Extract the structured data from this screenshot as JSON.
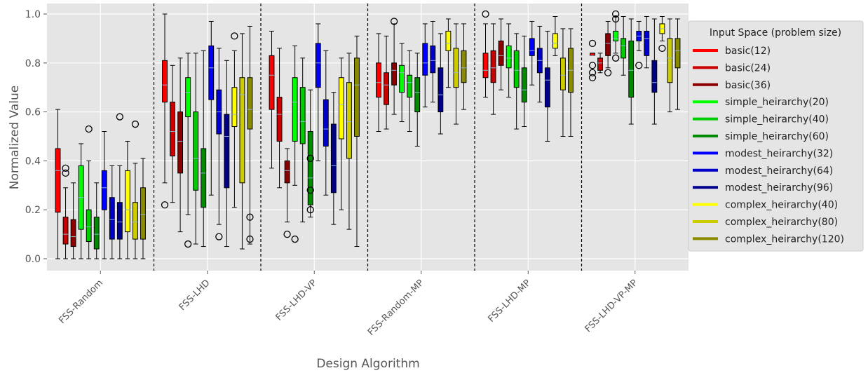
{
  "chart_data": {
    "type": "boxplot",
    "xlabel": "Design Algorithm",
    "ylabel": "Normalized Value",
    "ylim": [
      -0.05,
      1.05
    ],
    "yticks": [
      "0.0",
      "0.2",
      "0.4",
      "0.6",
      "0.8",
      "1.0"
    ],
    "grid": true,
    "legend_position": "right",
    "legend_title": "Input Space (problem size)",
    "categories": [
      "FSS-Random",
      "FSS-LHD",
      "FSS-LHD-VP",
      "FSS-Random-MP",
      "FSS-LHD-MP",
      "FSS-LHD-VP-MP"
    ],
    "series": [
      {
        "name": "basic(12)",
        "color": "#ff0000"
      },
      {
        "name": "basic(24)",
        "color": "#cc0000"
      },
      {
        "name": "basic(36)",
        "color": "#8b0000"
      },
      {
        "name": "simple_heirarchy(20)",
        "color": "#00ff00"
      },
      {
        "name": "simple_heirarchy(40)",
        "color": "#00cc00"
      },
      {
        "name": "simple_heirarchy(60)",
        "color": "#008b00"
      },
      {
        "name": "modest_heirarchy(32)",
        "color": "#0000ff"
      },
      {
        "name": "modest_heirarchy(64)",
        "color": "#0000cc"
      },
      {
        "name": "modest_heirarchy(96)",
        "color": "#00008b"
      },
      {
        "name": "complex_heirarchy(40)",
        "color": "#ffff00"
      },
      {
        "name": "complex_heirarchy(80)",
        "color": "#cccc00"
      },
      {
        "name": "complex_heirarchy(120)",
        "color": "#8b8b00"
      }
    ],
    "boxes": [
      [
        [
          0.0,
          0.19,
          0.36,
          0.45,
          0.61,
          []
        ],
        [
          0.0,
          0.06,
          0.1,
          0.17,
          0.29,
          [
            0.35,
            0.37
          ]
        ],
        [
          0.0,
          0.05,
          0.09,
          0.16,
          0.31,
          []
        ],
        [
          0.0,
          0.12,
          0.25,
          0.38,
          0.47,
          []
        ],
        [
          0.0,
          0.07,
          0.13,
          0.2,
          0.4,
          [
            0.53
          ]
        ],
        [
          0.0,
          0.04,
          0.1,
          0.17,
          0.31,
          []
        ],
        [
          0.0,
          0.2,
          0.29,
          0.36,
          0.52,
          []
        ],
        [
          0.0,
          0.08,
          0.16,
          0.25,
          0.38,
          []
        ],
        [
          0.0,
          0.08,
          0.15,
          0.23,
          0.38,
          [
            0.58
          ]
        ],
        [
          0.0,
          0.11,
          0.2,
          0.36,
          0.48,
          []
        ],
        [
          0.0,
          0.08,
          0.15,
          0.23,
          0.39,
          [
            0.55
          ]
        ],
        [
          0.0,
          0.08,
          0.18,
          0.29,
          0.41,
          []
        ]
      ],
      [
        [
          0.31,
          0.64,
          0.71,
          0.81,
          1.0,
          [
            0.22
          ]
        ],
        [
          0.23,
          0.42,
          0.52,
          0.64,
          0.79,
          []
        ],
        [
          0.11,
          0.35,
          0.48,
          0.6,
          0.82,
          []
        ],
        [
          0.18,
          0.58,
          0.68,
          0.74,
          0.84,
          [
            0.06
          ]
        ],
        [
          0.06,
          0.28,
          0.41,
          0.6,
          0.84,
          []
        ],
        [
          0.05,
          0.21,
          0.35,
          0.45,
          0.85,
          []
        ],
        [
          0.26,
          0.65,
          0.78,
          0.87,
          0.97,
          []
        ],
        [
          0.14,
          0.51,
          0.6,
          0.69,
          0.86,
          [
            0.09
          ]
        ],
        [
          0.05,
          0.29,
          0.5,
          0.59,
          0.81,
          []
        ],
        [
          0.21,
          0.54,
          0.59,
          0.7,
          0.85,
          [
            0.91
          ]
        ],
        [
          0.04,
          0.31,
          0.67,
          0.74,
          0.92,
          []
        ],
        [
          0.06,
          0.53,
          0.61,
          0.74,
          0.95,
          [
            0.17,
            0.08
          ]
        ]
      ],
      [
        [
          0.37,
          0.61,
          0.75,
          0.83,
          0.93,
          []
        ],
        [
          0.29,
          0.48,
          0.59,
          0.66,
          0.86,
          []
        ],
        [
          0.15,
          0.31,
          0.36,
          0.4,
          0.45,
          [
            0.1
          ]
        ],
        [
          0.3,
          0.48,
          0.64,
          0.74,
          0.87,
          [
            0.08
          ]
        ],
        [
          0.15,
          0.47,
          0.56,
          0.7,
          0.82,
          []
        ],
        [
          0.17,
          0.22,
          0.33,
          0.52,
          0.69,
          [
            0.41,
            0.28,
            0.2
          ]
        ],
        [
          0.4,
          0.7,
          0.8,
          0.88,
          0.96,
          []
        ],
        [
          0.26,
          0.46,
          0.53,
          0.65,
          0.85,
          []
        ],
        [
          0.14,
          0.27,
          0.38,
          0.55,
          0.68,
          []
        ],
        [
          0.2,
          0.49,
          0.63,
          0.74,
          0.82,
          []
        ],
        [
          0.12,
          0.41,
          0.56,
          0.72,
          0.84,
          []
        ],
        [
          0.05,
          0.5,
          0.71,
          0.82,
          0.91,
          []
        ]
      ],
      [
        [
          0.52,
          0.66,
          0.72,
          0.8,
          0.92,
          []
        ],
        [
          0.53,
          0.63,
          0.71,
          0.76,
          0.91,
          []
        ],
        [
          0.59,
          0.71,
          0.77,
          0.8,
          0.96,
          [
            0.97
          ]
        ],
        [
          0.56,
          0.68,
          0.76,
          0.79,
          0.88,
          []
        ],
        [
          0.52,
          0.66,
          0.72,
          0.75,
          0.85,
          []
        ],
        [
          0.46,
          0.6,
          0.68,
          0.74,
          0.84,
          []
        ],
        [
          0.62,
          0.75,
          0.8,
          0.88,
          0.96,
          []
        ],
        [
          0.64,
          0.76,
          0.81,
          0.87,
          0.97,
          []
        ],
        [
          0.51,
          0.6,
          0.67,
          0.78,
          0.92,
          []
        ],
        [
          0.7,
          0.85,
          0.88,
          0.93,
          0.98,
          []
        ],
        [
          0.55,
          0.7,
          0.76,
          0.86,
          0.96,
          []
        ],
        [
          0.61,
          0.72,
          0.78,
          0.85,
          0.96,
          []
        ]
      ],
      [
        [
          0.66,
          0.74,
          0.77,
          0.84,
          0.96,
          [
            1.0
          ]
        ],
        [
          0.59,
          0.72,
          0.78,
          0.85,
          0.96,
          []
        ],
        [
          0.69,
          0.79,
          0.83,
          0.89,
          0.98,
          []
        ],
        [
          0.66,
          0.78,
          0.82,
          0.87,
          0.96,
          []
        ],
        [
          0.53,
          0.7,
          0.77,
          0.85,
          0.92,
          []
        ],
        [
          0.54,
          0.64,
          0.69,
          0.78,
          0.91,
          []
        ],
        [
          0.71,
          0.83,
          0.85,
          0.9,
          0.97,
          []
        ],
        [
          0.64,
          0.76,
          0.81,
          0.86,
          0.95,
          []
        ],
        [
          0.48,
          0.62,
          0.73,
          0.78,
          0.93,
          []
        ],
        [
          0.83,
          0.86,
          0.88,
          0.92,
          0.99,
          []
        ],
        [
          0.5,
          0.69,
          0.75,
          0.82,
          0.94,
          []
        ],
        [
          0.5,
          0.68,
          0.77,
          0.86,
          0.94,
          []
        ]
      ],
      [
        [
          0.83,
          0.83,
          0.83,
          0.84,
          0.84,
          [
            0.88,
            0.79,
            0.76,
            0.74
          ]
        ],
        [
          0.76,
          0.77,
          0.8,
          0.82,
          0.84,
          []
        ],
        [
          0.78,
          0.83,
          0.88,
          0.92,
          0.97,
          [
            0.76
          ]
        ],
        [
          0.84,
          0.89,
          0.9,
          0.93,
          0.99,
          [
            1.0,
            0.98,
            0.82
          ]
        ],
        [
          0.75,
          0.82,
          0.87,
          0.9,
          0.99,
          []
        ],
        [
          0.55,
          0.66,
          0.77,
          0.89,
          0.98,
          []
        ],
        [
          0.85,
          0.89,
          0.91,
          0.93,
          0.97,
          [
            0.79
          ]
        ],
        [
          0.78,
          0.83,
          0.9,
          0.93,
          0.99,
          []
        ],
        [
          0.55,
          0.68,
          0.72,
          0.81,
          0.98,
          []
        ],
        [
          0.89,
          0.92,
          0.94,
          0.96,
          0.99,
          [
            0.86
          ]
        ],
        [
          0.6,
          0.72,
          0.82,
          0.9,
          0.98,
          []
        ],
        [
          0.61,
          0.78,
          0.85,
          0.9,
          0.98,
          []
        ]
      ]
    ]
  }
}
